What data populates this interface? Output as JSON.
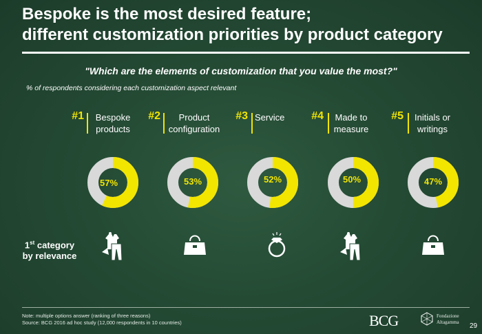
{
  "header": {
    "title_line1": "Bespoke is the most desired feature;",
    "title_line2": "different customization priorities by product category",
    "question": "\"Which are the elements of customization that you value the most?\"",
    "subtitle": "% of respondents considering each customization aspect relevant"
  },
  "chart_data": {
    "type": "pie",
    "variant": "donut",
    "series_name": "% of respondents considering aspect relevant",
    "categories": [
      {
        "rank": "#1",
        "label_line1": "Bespoke",
        "label_line2": "products",
        "value": 57,
        "value_label": "57%",
        "top_category_icon": "apparel-icon"
      },
      {
        "rank": "#2",
        "label_line1": "Product",
        "label_line2": "configuration",
        "value": 53,
        "value_label": "53%",
        "top_category_icon": "handbag-icon"
      },
      {
        "rank": "#3",
        "label_line1": "Service",
        "label_line2": "",
        "value": 52,
        "value_label": "52%",
        "top_category_icon": "ring-icon"
      },
      {
        "rank": "#4",
        "label_line1": "Made to",
        "label_line2": "measure",
        "value": 50,
        "value_label": "50%",
        "top_category_icon": "apparel-icon"
      },
      {
        "rank": "#5",
        "label_line1": "Initials or",
        "label_line2": "writings",
        "value": 47,
        "value_label": "47%",
        "top_category_icon": "handbag-icon"
      }
    ],
    "value_max": 100
  },
  "first_category": {
    "label": "1",
    "label_sup": "st",
    "label_rest": " category",
    "label_line2": "by relevance"
  },
  "footer": {
    "note": "Note: multiple options answer (ranking of three reasons)",
    "source": "Source: BCG 2016 ad hoc study (12,000 respondents in 10 countries)",
    "brand": "BCG",
    "partner_line1": "Fondazione",
    "partner_line2": "Altagamma",
    "page": "29"
  },
  "colors": {
    "accent": "#f2e500",
    "track": "#d9d9d9",
    "background": "#244a34"
  }
}
